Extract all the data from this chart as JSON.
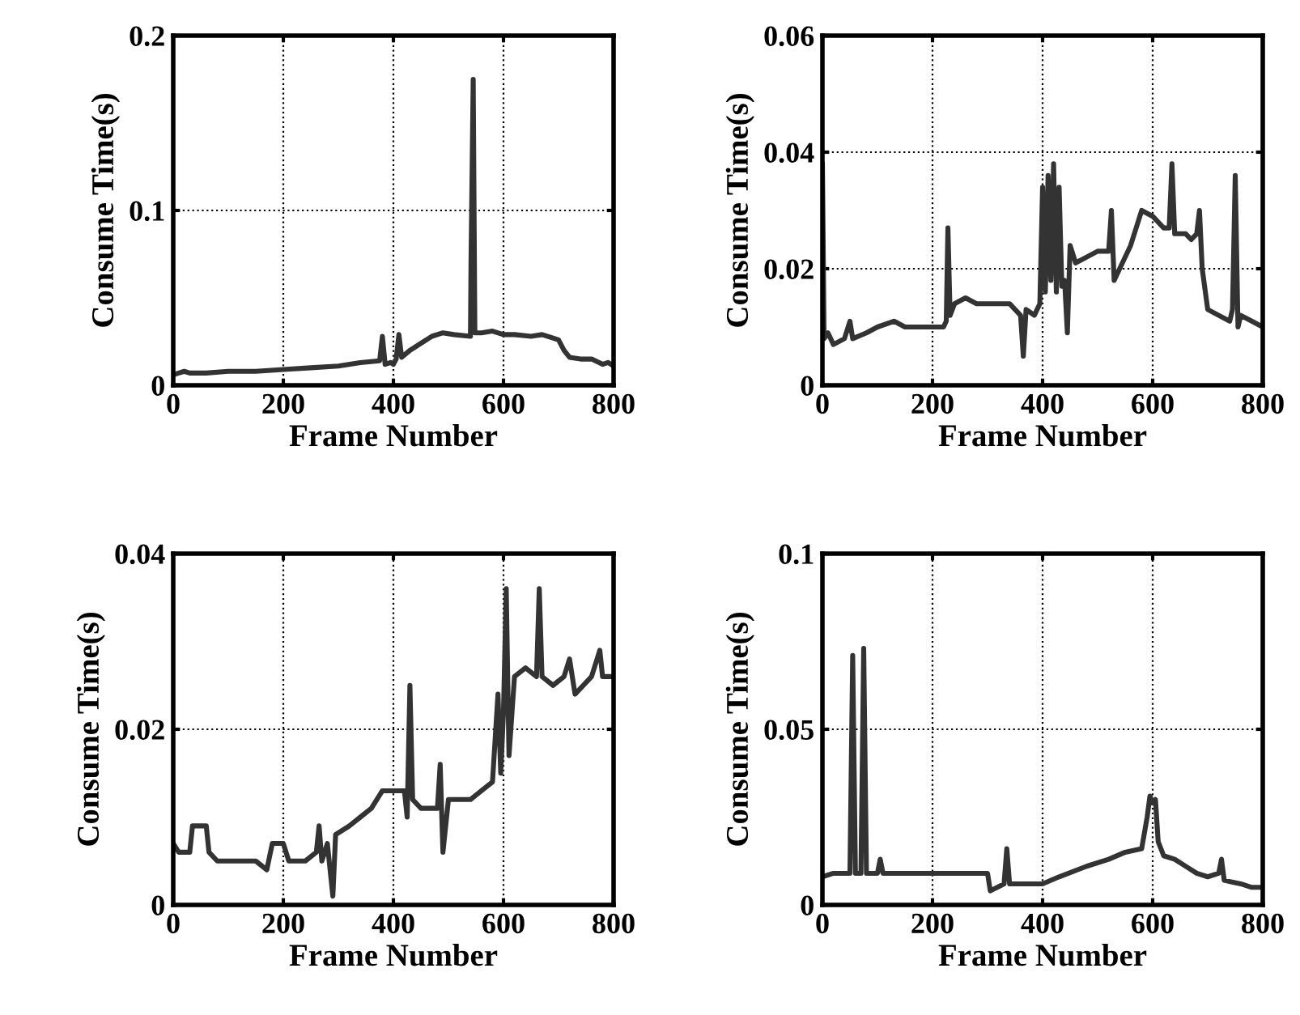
{
  "chart_data": [
    {
      "type": "line",
      "xlabel": "Frame Number",
      "ylabel": "Consume Time(s)",
      "xlim": [
        0,
        800
      ],
      "xticks": [
        0,
        200,
        400,
        600,
        800
      ],
      "ylim": [
        0,
        0.2
      ],
      "yticks": [
        0,
        0.1,
        0.2
      ],
      "grid": true,
      "line_style": "solid",
      "series": [
        {
          "color": "#333333",
          "x": [
            0,
            10,
            20,
            30,
            60,
            100,
            150,
            200,
            250,
            300,
            340,
            375,
            380,
            385,
            395,
            400,
            405,
            410,
            415,
            430,
            450,
            470,
            490,
            510,
            540,
            541,
            545,
            548,
            560,
            580,
            600,
            620,
            650,
            670,
            690,
            700,
            710,
            720,
            740,
            760,
            780,
            790,
            800
          ],
          "values": [
            0.006,
            0.007,
            0.008,
            0.007,
            0.007,
            0.008,
            0.008,
            0.009,
            0.01,
            0.011,
            0.013,
            0.014,
            0.028,
            0.012,
            0.013,
            0.012,
            0.015,
            0.029,
            0.016,
            0.02,
            0.024,
            0.028,
            0.03,
            0.029,
            0.028,
            0.07,
            0.175,
            0.03,
            0.03,
            0.031,
            0.029,
            0.029,
            0.028,
            0.029,
            0.027,
            0.026,
            0.02,
            0.016,
            0.015,
            0.015,
            0.012,
            0.013,
            0.011
          ]
        }
      ]
    },
    {
      "type": "line",
      "xlabel": "Frame Number",
      "ylabel": "Consume Time(s)",
      "xlim": [
        0,
        800
      ],
      "xticks": [
        0,
        200,
        400,
        600,
        800
      ],
      "ylim": [
        0,
        0.06
      ],
      "yticks": [
        0,
        0.02,
        0.04,
        0.06
      ],
      "grid": true,
      "line_style": "solid",
      "series": [
        {
          "color": "#333333",
          "x": [
            0,
            3,
            10,
            20,
            40,
            50,
            55,
            80,
            100,
            130,
            150,
            180,
            200,
            220,
            225,
            228,
            232,
            240,
            260,
            280,
            300,
            340,
            360,
            365,
            370,
            385,
            395,
            400,
            405,
            410,
            415,
            420,
            425,
            430,
            435,
            440,
            445,
            450,
            460,
            480,
            500,
            520,
            525,
            530,
            540,
            560,
            570,
            580,
            600,
            620,
            630,
            635,
            640,
            660,
            670,
            680,
            685,
            690,
            700,
            720,
            740,
            745,
            750,
            755,
            760,
            780,
            800
          ],
          "values": [
            0.038,
            0.008,
            0.009,
            0.007,
            0.008,
            0.011,
            0.008,
            0.009,
            0.01,
            0.011,
            0.01,
            0.01,
            0.01,
            0.01,
            0.011,
            0.027,
            0.012,
            0.014,
            0.015,
            0.014,
            0.014,
            0.014,
            0.012,
            0.005,
            0.013,
            0.012,
            0.014,
            0.034,
            0.016,
            0.036,
            0.018,
            0.038,
            0.016,
            0.034,
            0.017,
            0.018,
            0.009,
            0.024,
            0.021,
            0.022,
            0.023,
            0.023,
            0.03,
            0.018,
            0.02,
            0.024,
            0.027,
            0.03,
            0.029,
            0.027,
            0.027,
            0.038,
            0.026,
            0.026,
            0.025,
            0.026,
            0.03,
            0.02,
            0.013,
            0.012,
            0.011,
            0.013,
            0.036,
            0.01,
            0.012,
            0.011,
            0.01
          ]
        }
      ]
    },
    {
      "type": "line",
      "xlabel": "Frame Number",
      "ylabel": "Consume Time(s)",
      "xlim": [
        0,
        800
      ],
      "xticks": [
        0,
        200,
        400,
        600,
        800
      ],
      "ylim": [
        0,
        0.04
      ],
      "yticks": [
        0,
        0.02,
        0.04
      ],
      "grid": true,
      "line_style": "solid",
      "series": [
        {
          "color": "#333333",
          "x": [
            0,
            10,
            30,
            35,
            60,
            65,
            80,
            100,
            150,
            170,
            180,
            200,
            210,
            240,
            260,
            265,
            270,
            280,
            290,
            295,
            320,
            340,
            360,
            380,
            400,
            420,
            425,
            430,
            435,
            450,
            480,
            485,
            490,
            500,
            540,
            560,
            580,
            590,
            595,
            600,
            605,
            610,
            620,
            640,
            660,
            665,
            670,
            690,
            710,
            720,
            730,
            760,
            775,
            780,
            800
          ],
          "values": [
            0.007,
            0.006,
            0.006,
            0.009,
            0.009,
            0.006,
            0.005,
            0.005,
            0.005,
            0.004,
            0.007,
            0.007,
            0.005,
            0.005,
            0.006,
            0.009,
            0.005,
            0.007,
            0.001,
            0.008,
            0.009,
            0.01,
            0.011,
            0.013,
            0.013,
            0.013,
            0.01,
            0.025,
            0.012,
            0.011,
            0.011,
            0.016,
            0.006,
            0.012,
            0.012,
            0.013,
            0.014,
            0.024,
            0.015,
            0.022,
            0.036,
            0.017,
            0.026,
            0.027,
            0.026,
            0.036,
            0.026,
            0.025,
            0.026,
            0.028,
            0.024,
            0.026,
            0.029,
            0.026,
            0.026
          ]
        }
      ]
    },
    {
      "type": "line",
      "xlabel": "Frame Number",
      "ylabel": "Consume Time(s)",
      "xlim": [
        0,
        800
      ],
      "xticks": [
        0,
        200,
        400,
        600,
        800
      ],
      "ylim": [
        0,
        0.1
      ],
      "yticks": [
        0,
        0.05,
        0.1
      ],
      "grid": true,
      "line_style": "solid",
      "series": [
        {
          "color": "#333333",
          "x": [
            0,
            20,
            50,
            55,
            60,
            70,
            75,
            80,
            100,
            105,
            110,
            200,
            250,
            300,
            305,
            330,
            335,
            340,
            400,
            430,
            480,
            520,
            550,
            580,
            590,
            595,
            600,
            605,
            610,
            620,
            640,
            660,
            680,
            700,
            720,
            725,
            730,
            760,
            780,
            800
          ],
          "values": [
            0.008,
            0.009,
            0.009,
            0.071,
            0.009,
            0.009,
            0.073,
            0.009,
            0.009,
            0.013,
            0.009,
            0.009,
            0.009,
            0.009,
            0.004,
            0.006,
            0.016,
            0.006,
            0.006,
            0.008,
            0.011,
            0.013,
            0.015,
            0.016,
            0.025,
            0.031,
            0.029,
            0.03,
            0.018,
            0.014,
            0.013,
            0.011,
            0.009,
            0.008,
            0.009,
            0.013,
            0.007,
            0.006,
            0.005,
            0.005
          ]
        }
      ]
    }
  ]
}
